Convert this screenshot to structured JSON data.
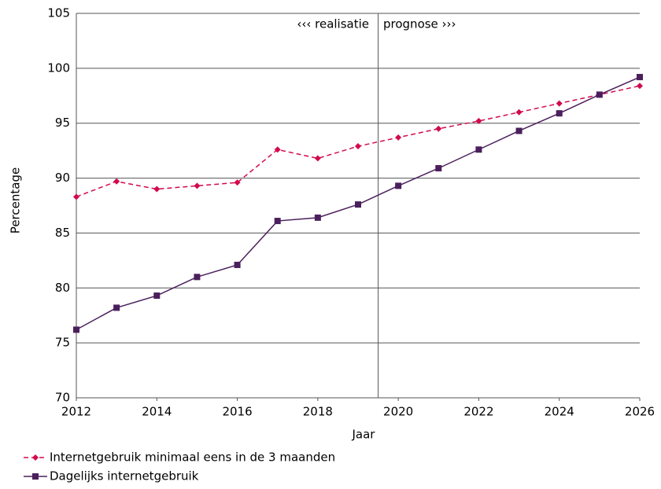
{
  "chart_data": {
    "type": "line",
    "x": [
      2012,
      2013,
      2014,
      2015,
      2016,
      2017,
      2018,
      2019,
      2020,
      2021,
      2022,
      2023,
      2024,
      2025,
      2026
    ],
    "series": [
      {
        "name": "Internetgebruik minimaal eens in de 3 maanden",
        "color": "#d10a4e",
        "dash": true,
        "marker": "diamond",
        "values": [
          88.3,
          89.7,
          89.0,
          89.3,
          89.6,
          92.6,
          91.8,
          92.9,
          93.7,
          94.5,
          95.2,
          96.0,
          96.8,
          97.6,
          98.4
        ]
      },
      {
        "name": "Dagelijks internetgebruik",
        "color": "#4b1f5c",
        "dash": false,
        "marker": "square",
        "values": [
          76.2,
          78.2,
          79.3,
          81.0,
          82.1,
          86.1,
          86.4,
          87.6,
          89.3,
          90.9,
          92.6,
          94.3,
          95.9,
          97.6,
          99.2
        ]
      }
    ],
    "xlim": [
      2012,
      2026
    ],
    "xticks": [
      2012,
      2014,
      2016,
      2018,
      2020,
      2022,
      2024,
      2026
    ],
    "ylim": [
      70,
      105
    ],
    "yticks": [
      70,
      75,
      80,
      85,
      90,
      95,
      100,
      105
    ],
    "grid": true,
    "xlabel": "Jaar",
    "ylabel": "Percentage",
    "divider_x": 2019.5,
    "annotations": [
      "‹‹‹ realisatie",
      "prognose ›››"
    ],
    "legend": "bottom"
  }
}
